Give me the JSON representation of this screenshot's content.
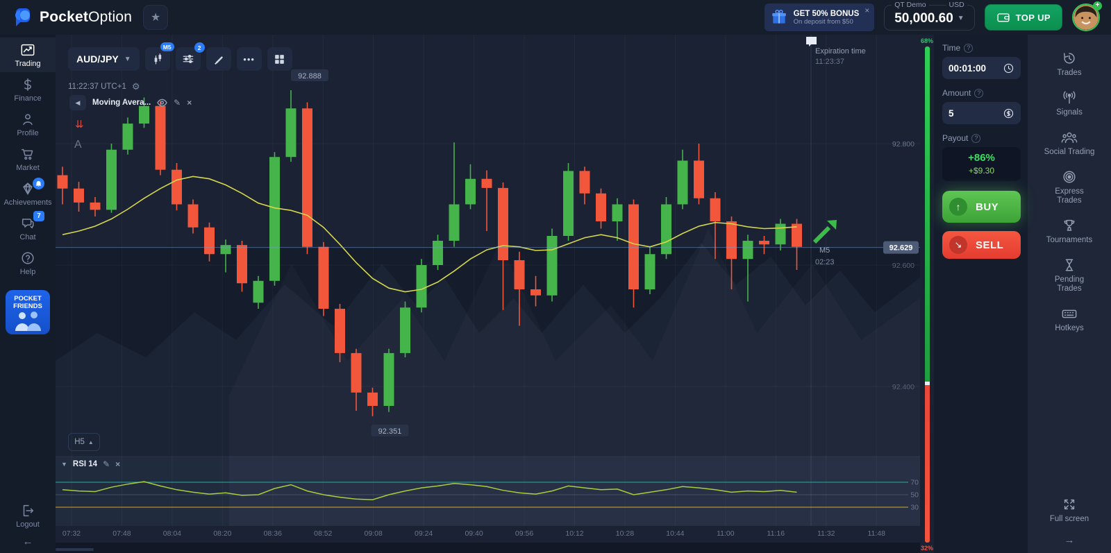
{
  "colors": {
    "candle_up": "#45b44b",
    "candle_down": "#f2573c",
    "ma_line": "#d6d74b",
    "rsi_line": "#a8cf3a",
    "accent_blue": "#2b7cf6",
    "buy_green": "#4db74d",
    "sell_red": "#f4473a",
    "topup_green": "#0f9d5b",
    "current_price_pill": "#4e5b76",
    "payout_green": "#3ddc64",
    "rsi_70": "#2aa79b",
    "rsi_50": "#7c889e",
    "rsi_30": "#c9a227"
  },
  "topbar": {
    "logo_bold": "Pocket",
    "logo_light": "Option",
    "bonus_title": "GET 50% BONUS",
    "bonus_subtitle": "On deposit from $50",
    "bonus_close": "×",
    "account_type": "QT Demo",
    "currency": "USD",
    "balance": "50,000.60",
    "topup": "TOP UP"
  },
  "sidebar_left": {
    "trading": "Trading",
    "finance": "Finance",
    "profile": "Profile",
    "market": "Market",
    "achievements": "Achievements",
    "chat": "Chat",
    "chat_badge": "7",
    "help": "Help",
    "pocket_friends_line1": "POCKET",
    "pocket_friends_line2": "FRIENDS",
    "logout": "Logout"
  },
  "toolbar": {
    "symbol": "AUD/JPY",
    "chart_type_badge": "M5",
    "indicators_badge": "2",
    "more": "•••"
  },
  "chart_meta": {
    "clock": "11:22:37 UTC+1",
    "indicator_chip": "Moving Avera...",
    "tool_a": "A",
    "timeframe_button": "H5",
    "rsi_label": "RSI 14",
    "expiration_title": "Expiration time",
    "expiration_time": "11:23:37",
    "sentiment_up": "68%",
    "sentiment_down": "32%"
  },
  "chart_data": {
    "type": "candlestick",
    "symbol": "AUD/JPY",
    "timeframe": "M5",
    "title": "AUD/JPY M5 candlestick chart with Moving Average overlay and RSI(14) subchart",
    "y_axis": {
      "labels": [
        "92.800",
        "92.600",
        "92.400"
      ],
      "values": [
        92.8,
        92.6,
        92.4
      ]
    },
    "x_labels": [
      "07:32",
      "07:48",
      "08:04",
      "08:20",
      "08:36",
      "08:52",
      "09:08",
      "09:24",
      "09:40",
      "09:56",
      "10:12",
      "10:28",
      "10:44",
      "11:00",
      "11:16",
      "11:32",
      "11:48"
    ],
    "high_label": "92.888",
    "low_label": "92.351",
    "high_index": 14,
    "low_index": 19,
    "current_price": 92.629,
    "current_price_label": "92.629",
    "marker": {
      "tf": "M5",
      "countdown": "02:23"
    },
    "rsi_levels": [
      70,
      50,
      30
    ],
    "candles": [
      [
        92.748,
        92.762,
        92.7,
        92.726
      ],
      [
        92.726,
        92.737,
        92.688,
        92.703
      ],
      [
        92.703,
        92.712,
        92.68,
        92.691
      ],
      [
        92.691,
        92.8,
        92.686,
        92.79
      ],
      [
        92.79,
        92.843,
        92.782,
        92.833
      ],
      [
        92.833,
        92.876,
        92.826,
        92.862
      ],
      [
        92.862,
        92.87,
        92.748,
        92.757
      ],
      [
        92.757,
        92.768,
        92.69,
        92.7
      ],
      [
        92.7,
        92.708,
        92.652,
        92.662
      ],
      [
        92.662,
        92.67,
        92.606,
        92.618
      ],
      [
        92.618,
        92.642,
        92.588,
        92.633
      ],
      [
        92.633,
        92.64,
        92.556,
        92.57
      ],
      [
        92.538,
        92.582,
        92.528,
        92.574
      ],
      [
        92.574,
        92.786,
        92.566,
        92.778
      ],
      [
        92.778,
        92.888,
        92.77,
        92.858
      ],
      [
        92.858,
        92.868,
        92.618,
        92.63
      ],
      [
        92.63,
        92.638,
        92.516,
        92.528
      ],
      [
        92.528,
        92.536,
        92.44,
        92.455
      ],
      [
        92.455,
        92.462,
        92.36,
        92.39
      ],
      [
        92.39,
        92.398,
        92.351,
        92.368
      ],
      [
        92.368,
        92.462,
        92.358,
        92.455
      ],
      [
        92.455,
        92.54,
        92.448,
        92.53
      ],
      [
        92.53,
        92.61,
        92.522,
        92.6
      ],
      [
        92.6,
        92.65,
        92.592,
        92.64
      ],
      [
        92.64,
        92.802,
        92.63,
        92.7
      ],
      [
        92.7,
        92.766,
        92.692,
        92.742
      ],
      [
        92.742,
        92.756,
        92.656,
        92.727
      ],
      [
        92.727,
        92.736,
        92.526,
        92.608
      ],
      [
        92.608,
        92.622,
        92.5,
        92.56
      ],
      [
        92.56,
        92.582,
        92.532,
        92.55
      ],
      [
        92.55,
        92.66,
        92.54,
        92.648
      ],
      [
        92.648,
        92.768,
        92.64,
        92.755
      ],
      [
        92.755,
        92.762,
        92.7,
        92.718
      ],
      [
        92.718,
        92.726,
        92.66,
        92.672
      ],
      [
        92.672,
        92.71,
        92.64,
        92.7
      ],
      [
        92.7,
        92.708,
        92.53,
        92.56
      ],
      [
        92.56,
        92.63,
        92.552,
        92.618
      ],
      [
        92.618,
        92.712,
        92.61,
        92.7
      ],
      [
        92.7,
        92.79,
        92.692,
        92.772
      ],
      [
        92.772,
        92.8,
        92.7,
        92.71
      ],
      [
        92.71,
        92.72,
        92.61,
        92.672
      ],
      [
        92.672,
        92.68,
        92.56,
        92.61
      ],
      [
        92.61,
        92.65,
        92.54,
        92.64
      ],
      [
        92.64,
        92.648,
        92.618,
        92.634
      ],
      [
        92.634,
        92.676,
        92.624,
        92.668
      ],
      [
        92.668,
        92.676,
        92.592,
        92.63
      ]
    ],
    "ma": [
      92.65,
      92.656,
      92.664,
      92.676,
      92.692,
      92.71,
      92.726,
      92.74,
      92.746,
      92.742,
      92.732,
      92.718,
      92.702,
      92.694,
      92.69,
      92.682,
      92.662,
      92.634,
      92.604,
      92.578,
      92.562,
      92.556,
      92.56,
      92.572,
      92.59,
      92.61,
      92.625,
      92.632,
      92.63,
      92.624,
      92.625,
      92.635,
      92.645,
      92.65,
      92.645,
      92.635,
      92.63,
      92.638,
      92.652,
      92.664,
      92.67,
      92.668,
      92.663,
      92.66,
      92.661,
      92.663
    ],
    "rsi": [
      58,
      56,
      55,
      62,
      67,
      71,
      64,
      58,
      54,
      51,
      53,
      49,
      50,
      60,
      66,
      56,
      50,
      46,
      43,
      42,
      50,
      56,
      61,
      64,
      68,
      66,
      63,
      57,
      53,
      51,
      56,
      64,
      61,
      58,
      59,
      50,
      54,
      58,
      63,
      61,
      58,
      54,
      56,
      55,
      57,
      54
    ]
  },
  "trade_panel": {
    "time_label": "Time",
    "time_value": "00:01:00",
    "amount_label": "Amount",
    "amount_value": "5",
    "payout_label": "Payout",
    "payout_percent": "+86%",
    "payout_amount": "+$9.30",
    "buy": "BUY",
    "sell": "SELL"
  },
  "sidebar_right": {
    "trades": "Trades",
    "signals": "Signals",
    "social": "Social Trading",
    "express_line1": "Express",
    "express_line2": "Trades",
    "tournaments": "Tournaments",
    "pending_line1": "Pending",
    "pending_line2": "Trades",
    "hotkeys": "Hotkeys",
    "fullscreen": "Full screen"
  }
}
